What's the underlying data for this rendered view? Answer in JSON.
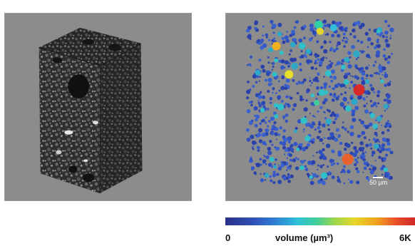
{
  "scale_bar": {
    "label": "50 µm"
  },
  "colorbar": {
    "min_label": "0",
    "title_label": "volume (µm³)",
    "max_label": "6K",
    "colors": [
      "#2b2f8a",
      "#2f4fb4",
      "#2f7fd4",
      "#2fc0d8",
      "#3fcf9a",
      "#9fd64a",
      "#e6d62a",
      "#f0a020",
      "#e8502a",
      "#d02828"
    ]
  },
  "panels": {
    "left": {
      "background": "#8c8c8c",
      "icon": "tomography-cube-render"
    },
    "right": {
      "background": "#8c8c8c",
      "icon": "pore-volume-render"
    }
  }
}
